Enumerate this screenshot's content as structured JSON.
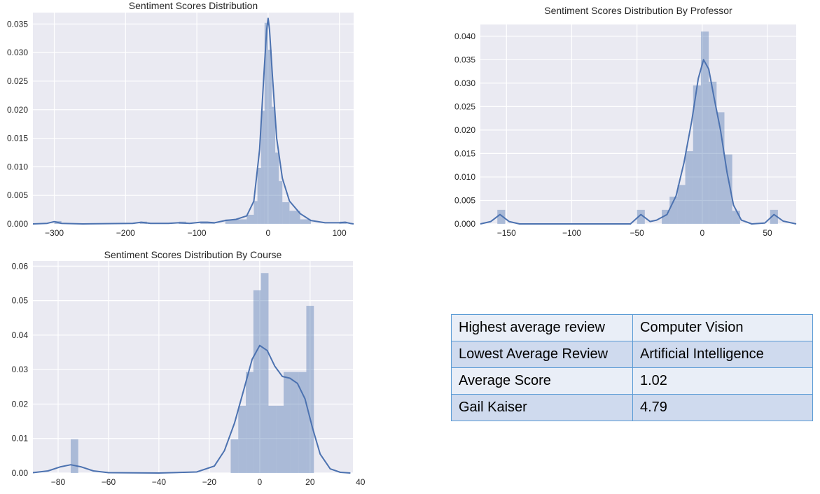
{
  "chart_data": [
    {
      "type": "histogram",
      "title": "Sentiment Scores Distribution",
      "xlim": [
        -330,
        120
      ],
      "ylim": [
        0,
        0.037
      ],
      "xticks": [
        -300,
        -200,
        -100,
        0,
        100
      ],
      "yticks": [
        0.0,
        0.005,
        0.01,
        0.015,
        0.02,
        0.025,
        0.03,
        0.035
      ],
      "grid": true,
      "bins": [
        {
          "x0": -300,
          "x1": -290,
          "y": 0.0005
        },
        {
          "x0": -180,
          "x1": -170,
          "y": 0.0004
        },
        {
          "x0": -125,
          "x1": -115,
          "y": 0.0004
        },
        {
          "x0": -95,
          "x1": -85,
          "y": 0.0004
        },
        {
          "x0": -85,
          "x1": -75,
          "y": 0.0003
        },
        {
          "x0": -60,
          "x1": -50,
          "y": 0.0008
        },
        {
          "x0": -50,
          "x1": -40,
          "y": 0.0008
        },
        {
          "x0": -40,
          "x1": -30,
          "y": 0.0008
        },
        {
          "x0": -30,
          "x1": -20,
          "y": 0.0016
        },
        {
          "x0": -20,
          "x1": -15,
          "y": 0.004
        },
        {
          "x0": -15,
          "x1": -10,
          "y": 0.0098
        },
        {
          "x0": -10,
          "x1": -5,
          "y": 0.0198
        },
        {
          "x0": -5,
          "x1": 0,
          "y": 0.0352
        },
        {
          "x0": 0,
          "x1": 5,
          "y": 0.0305
        },
        {
          "x0": 5,
          "x1": 10,
          "y": 0.0205
        },
        {
          "x0": 10,
          "x1": 15,
          "y": 0.0125
        },
        {
          "x0": 15,
          "x1": 20,
          "y": 0.0075
        },
        {
          "x0": 20,
          "x1": 30,
          "y": 0.0038
        },
        {
          "x0": 30,
          "x1": 45,
          "y": 0.0023
        },
        {
          "x0": 45,
          "x1": 60,
          "y": 0.0008
        },
        {
          "x0": 100,
          "x1": 110,
          "y": 0.0004
        }
      ],
      "kde": [
        [
          -330,
          0.0
        ],
        [
          -310,
          0.0001
        ],
        [
          -300,
          0.0004
        ],
        [
          -290,
          0.0001
        ],
        [
          -260,
          0.0
        ],
        [
          -190,
          0.0001
        ],
        [
          -178,
          0.0003
        ],
        [
          -165,
          0.0001
        ],
        [
          -140,
          0.0001
        ],
        [
          -125,
          0.0002
        ],
        [
          -110,
          0.0001
        ],
        [
          -95,
          0.0003
        ],
        [
          -85,
          0.0003
        ],
        [
          -75,
          0.0002
        ],
        [
          -60,
          0.0006
        ],
        [
          -45,
          0.0008
        ],
        [
          -30,
          0.0014
        ],
        [
          -20,
          0.004
        ],
        [
          -12,
          0.013
        ],
        [
          -6,
          0.026
        ],
        [
          -2,
          0.034
        ],
        [
          0,
          0.036
        ],
        [
          2,
          0.034
        ],
        [
          6,
          0.026
        ],
        [
          12,
          0.015
        ],
        [
          20,
          0.008
        ],
        [
          30,
          0.004
        ],
        [
          45,
          0.0018
        ],
        [
          60,
          0.0006
        ],
        [
          80,
          0.0002
        ],
        [
          100,
          0.0002
        ],
        [
          108,
          0.0003
        ],
        [
          115,
          0.0001
        ],
        [
          120,
          0.0
        ]
      ],
      "color": "#4c72b0"
    },
    {
      "type": "histogram",
      "title": "Sentiment Scores Distribution By Professor",
      "xlim": [
        -170,
        72
      ],
      "ylim": [
        0,
        0.0425
      ],
      "xticks": [
        -150,
        -100,
        -50,
        0,
        50
      ],
      "yticks": [
        0.0,
        0.005,
        0.01,
        0.015,
        0.02,
        0.025,
        0.03,
        0.035,
        0.04
      ],
      "grid": true,
      "bins": [
        {
          "x0": -157,
          "x1": -151,
          "y": 0.003
        },
        {
          "x0": -50,
          "x1": -44,
          "y": 0.003
        },
        {
          "x0": -31,
          "x1": -25,
          "y": 0.003
        },
        {
          "x0": -25,
          "x1": -19,
          "y": 0.0058
        },
        {
          "x0": -19,
          "x1": -13,
          "y": 0.0083
        },
        {
          "x0": -13,
          "x1": -7,
          "y": 0.0155
        },
        {
          "x0": -7,
          "x1": -1,
          "y": 0.0295
        },
        {
          "x0": -1,
          "x1": 5,
          "y": 0.041
        },
        {
          "x0": 5,
          "x1": 11,
          "y": 0.0303
        },
        {
          "x0": 11,
          "x1": 17,
          "y": 0.0238
        },
        {
          "x0": 17,
          "x1": 23,
          "y": 0.0148
        },
        {
          "x0": 23,
          "x1": 29,
          "y": 0.0028
        },
        {
          "x0": 52,
          "x1": 58,
          "y": 0.003
        }
      ],
      "kde": [
        [
          -170,
          0.0
        ],
        [
          -162,
          0.0005
        ],
        [
          -155,
          0.002
        ],
        [
          -148,
          0.0005
        ],
        [
          -140,
          0.0
        ],
        [
          -55,
          0.0
        ],
        [
          -47,
          0.002
        ],
        [
          -40,
          0.0005
        ],
        [
          -35,
          0.0008
        ],
        [
          -27,
          0.002
        ],
        [
          -20,
          0.006
        ],
        [
          -14,
          0.013
        ],
        [
          -8,
          0.022
        ],
        [
          -3,
          0.031
        ],
        [
          1,
          0.035
        ],
        [
          5,
          0.033
        ],
        [
          9,
          0.027
        ],
        [
          14,
          0.02
        ],
        [
          19,
          0.011
        ],
        [
          24,
          0.004
        ],
        [
          30,
          0.0008
        ],
        [
          38,
          0.0
        ],
        [
          48,
          0.0002
        ],
        [
          55,
          0.002
        ],
        [
          62,
          0.0006
        ],
        [
          72,
          0.0
        ]
      ],
      "color": "#4c72b0"
    },
    {
      "type": "histogram",
      "title": "Sentiment Scores Distribution By Course",
      "xlim": [
        -90,
        37
      ],
      "ylim": [
        0,
        0.0615
      ],
      "xticks": [
        -80,
        -60,
        -40,
        -20,
        0,
        20,
        40
      ],
      "yticks": [
        0.0,
        0.01,
        0.02,
        0.03,
        0.04,
        0.05,
        0.06
      ],
      "grid": true,
      "bins": [
        {
          "x0": -75,
          "x1": -72,
          "y": 0.0098
        },
        {
          "x0": -11.5,
          "x1": -8.5,
          "y": 0.0098
        },
        {
          "x0": -8.5,
          "x1": -5.5,
          "y": 0.0195
        },
        {
          "x0": -5.5,
          "x1": -2.5,
          "y": 0.0293
        },
        {
          "x0": -2.5,
          "x1": 0.5,
          "y": 0.053
        },
        {
          "x0": 0.5,
          "x1": 3.5,
          "y": 0.058
        },
        {
          "x0": 3.5,
          "x1": 6.5,
          "y": 0.0195
        },
        {
          "x0": 6.5,
          "x1": 9.5,
          "y": 0.0195
        },
        {
          "x0": 9.5,
          "x1": 12.5,
          "y": 0.0293
        },
        {
          "x0": 12.5,
          "x1": 15.5,
          "y": 0.0293
        },
        {
          "x0": 15.5,
          "x1": 18.5,
          "y": 0.0293
        },
        {
          "x0": 18.5,
          "x1": 21.5,
          "y": 0.0485
        }
      ],
      "kde": [
        [
          -90,
          0.0001
        ],
        [
          -84,
          0.0006
        ],
        [
          -79,
          0.0018
        ],
        [
          -75,
          0.0024
        ],
        [
          -71,
          0.0018
        ],
        [
          -66,
          0.0006
        ],
        [
          -60,
          0.0001
        ],
        [
          -40,
          0.0
        ],
        [
          -25,
          0.0003
        ],
        [
          -18,
          0.002
        ],
        [
          -14,
          0.0065
        ],
        [
          -10,
          0.0145
        ],
        [
          -6,
          0.025
        ],
        [
          -3,
          0.033
        ],
        [
          0,
          0.037
        ],
        [
          3,
          0.0355
        ],
        [
          6,
          0.031
        ],
        [
          9,
          0.028
        ],
        [
          12,
          0.0275
        ],
        [
          15,
          0.026
        ],
        [
          18,
          0.0215
        ],
        [
          21,
          0.013
        ],
        [
          24,
          0.0055
        ],
        [
          28,
          0.0012
        ],
        [
          32,
          0.0002
        ],
        [
          36,
          0.0
        ]
      ],
      "color": "#4c72b0"
    }
  ],
  "summary_table": {
    "rows": [
      {
        "label": "Highest average review",
        "value": "Computer Vision"
      },
      {
        "label": "Lowest Average Review",
        "value": "Artificial Intelligence"
      },
      {
        "label": "Average Score",
        "value": "1.02"
      },
      {
        "label": "Gail Kaiser",
        "value": "4.79"
      }
    ]
  },
  "colors": {
    "plot_background": "#eaeaf2",
    "gridline": "#ffffff",
    "series": "#4c72b0",
    "table_border": "#5b9bd5"
  }
}
